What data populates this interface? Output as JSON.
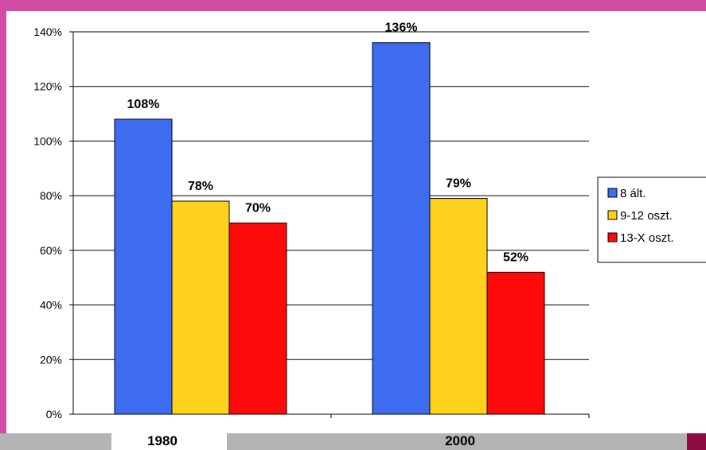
{
  "chart_data": {
    "type": "bar",
    "categories": [
      "1980",
      "2000"
    ],
    "series": [
      {
        "name": "8 ált.",
        "values": [
          108,
          136
        ],
        "color": "#3e6cf0"
      },
      {
        "name": "9-12 oszt.",
        "values": [
          78,
          79
        ],
        "color": "#ffd21e"
      },
      {
        "name": "13-X oszt.",
        "values": [
          70,
          52
        ],
        "color": "#ff0a0a"
      }
    ],
    "value_labels": [
      [
        "108%",
        "136%"
      ],
      [
        "78%",
        "79%"
      ],
      [
        "70%",
        "52%"
      ]
    ],
    "ylim": [
      0,
      140
    ],
    "yticks": [
      0,
      20,
      40,
      60,
      80,
      100,
      120,
      140
    ],
    "ytick_labels": [
      "0%",
      "20%",
      "40%",
      "60%",
      "80%",
      "100%",
      "120%",
      "140%"
    ],
    "grid": true,
    "legend_position": "right",
    "title": "",
    "xlabel": "",
    "ylabel": ""
  }
}
